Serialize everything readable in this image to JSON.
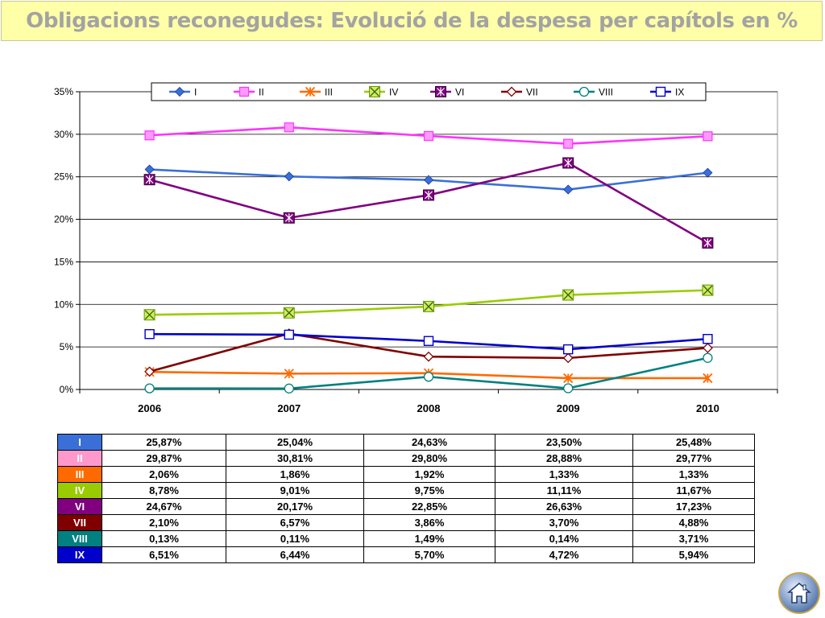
{
  "title": "Obligacions reconegudes: Evolució de la despesa per capítols en %",
  "chart_data": {
    "type": "line",
    "x": [
      "2006",
      "2007",
      "2008",
      "2009",
      "2010"
    ],
    "yticks": [
      "0%",
      "5%",
      "10%",
      "15%",
      "20%",
      "25%",
      "30%",
      "35%"
    ],
    "ylim": [
      0,
      35
    ],
    "grid": true,
    "legend_position": "top",
    "series": [
      {
        "name": "I",
        "color": "#3a6fd8",
        "marker": "diamond",
        "values": [
          25.87,
          25.04,
          24.63,
          23.5,
          25.48
        ]
      },
      {
        "name": "II",
        "color": "#ff33ff",
        "marker": "square",
        "values": [
          29.87,
          30.81,
          29.8,
          28.88,
          29.77
        ]
      },
      {
        "name": "III",
        "color": "#ff6a00",
        "marker": "star-x",
        "values": [
          2.06,
          1.86,
          1.92,
          1.33,
          1.33
        ]
      },
      {
        "name": "IV",
        "color": "#99cc00",
        "marker": "x-box",
        "values": [
          8.78,
          9.01,
          9.75,
          11.11,
          11.67
        ]
      },
      {
        "name": "VI",
        "color": "#800080",
        "marker": "star-box",
        "values": [
          24.67,
          20.17,
          22.85,
          26.63,
          17.23
        ]
      },
      {
        "name": "VII",
        "color": "#800000",
        "marker": "diamond-open",
        "values": [
          2.1,
          6.57,
          3.86,
          3.7,
          4.88
        ]
      },
      {
        "name": "VIII",
        "color": "#008080",
        "marker": "circle-open",
        "values": [
          0.13,
          0.11,
          1.49,
          0.14,
          3.71
        ]
      },
      {
        "name": "IX",
        "color": "#0000cc",
        "marker": "square-open",
        "values": [
          6.51,
          6.44,
          5.7,
          4.72,
          5.94
        ]
      }
    ]
  },
  "table": {
    "rows": [
      {
        "label": "I",
        "color": "#3a6fd8",
        "cells": [
          "25,87%",
          "25,04%",
          "24,63%",
          "23,50%",
          "25,48%"
        ]
      },
      {
        "label": "II",
        "color": "#ff99cc",
        "cells": [
          "29,87%",
          "30,81%",
          "29,80%",
          "28,88%",
          "29,77%"
        ]
      },
      {
        "label": "III",
        "color": "#ff6a00",
        "cells": [
          "2,06%",
          "1,86%",
          "1,92%",
          "1,33%",
          "1,33%"
        ]
      },
      {
        "label": "IV",
        "color": "#99cc00",
        "cells": [
          "8,78%",
          "9,01%",
          "9,75%",
          "11,11%",
          "11,67%"
        ]
      },
      {
        "label": "VI",
        "color": "#800080",
        "cells": [
          "24,67%",
          "20,17%",
          "22,85%",
          "26,63%",
          "17,23%"
        ]
      },
      {
        "label": "VII",
        "color": "#800000",
        "cells": [
          "2,10%",
          "6,57%",
          "3,86%",
          "3,70%",
          "4,88%"
        ]
      },
      {
        "label": "VIII",
        "color": "#008080",
        "cells": [
          "0,13%",
          "0,11%",
          "1,49%",
          "0,14%",
          "3,71%"
        ]
      },
      {
        "label": "IX",
        "color": "#0000cc",
        "cells": [
          "6,51%",
          "6,44%",
          "5,70%",
          "4,72%",
          "5,94%"
        ]
      }
    ]
  },
  "home_button": {
    "icon": "home-icon"
  }
}
